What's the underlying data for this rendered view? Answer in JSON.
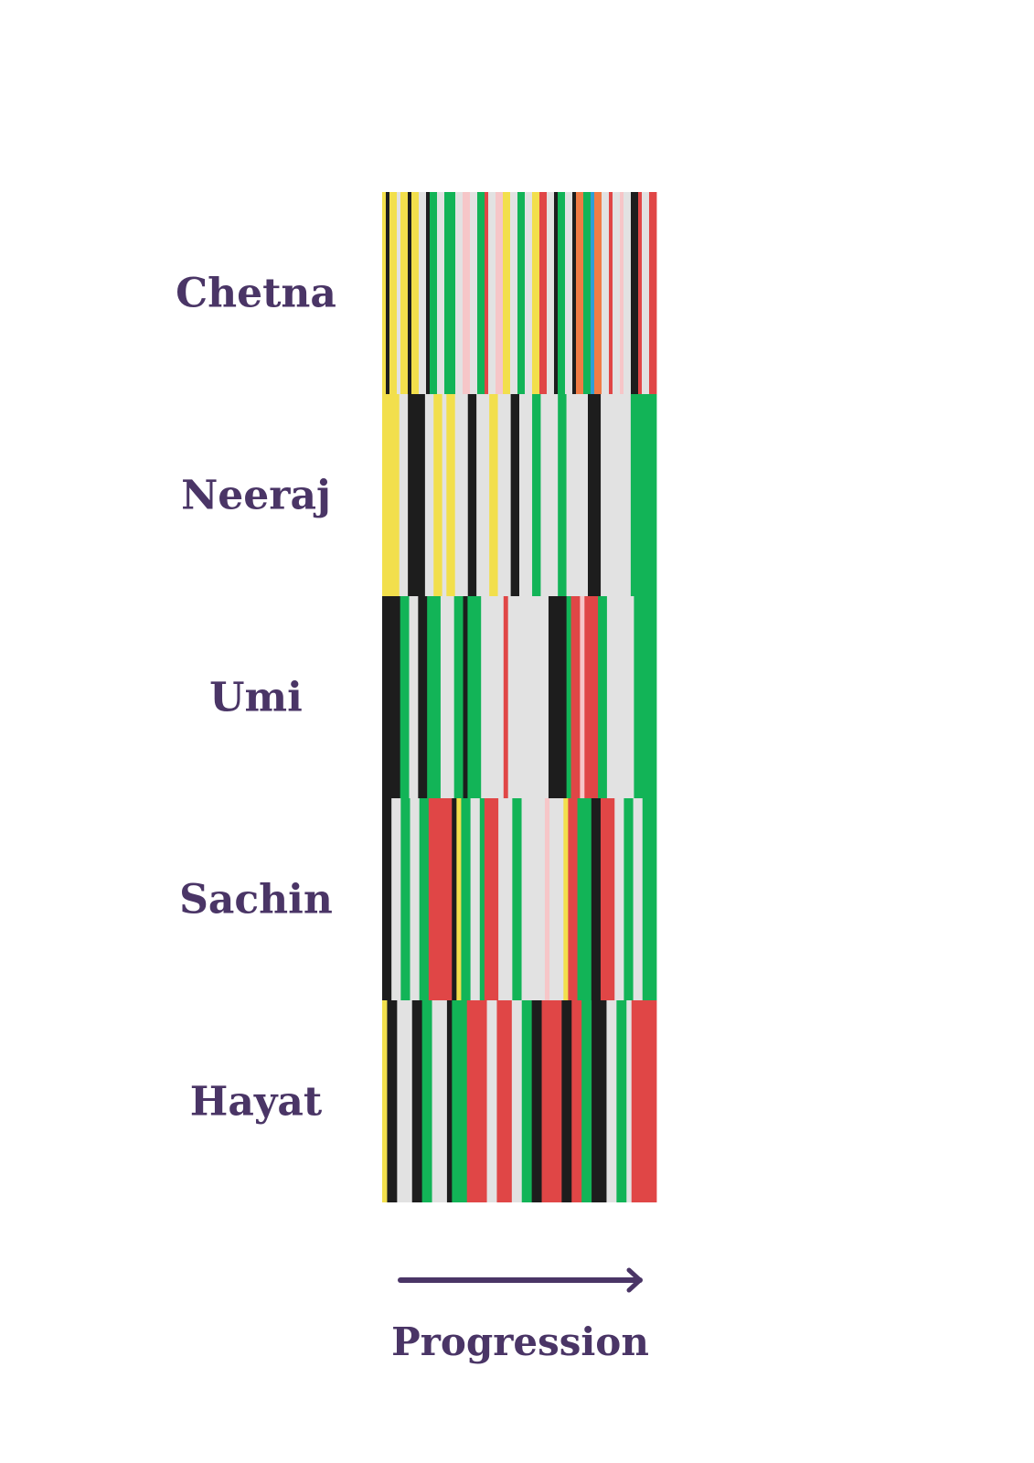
{
  "chart_data": {
    "type": "heatmap",
    "xlabel": "Progression",
    "palette": {
      "Y": "#f2df4c",
      "K": "#1d1d1d",
      "G": "#12b457",
      "R": "#e04646",
      "W": "#e2e2e2",
      "P": "#f6c6c8",
      "O": "#f07c45",
      "B": "#2e9ed6"
    },
    "label_color": "#4a3566",
    "arrow_color": "#4a3566",
    "rows": [
      {
        "name": "Chetna",
        "segments": [
          "Y",
          "K",
          "Y",
          "W",
          "Y",
          "K",
          "Y",
          "W",
          "K",
          "G",
          "W",
          "G",
          "W",
          "P",
          "W",
          "G",
          "R",
          "W",
          "P",
          "Y",
          "W",
          "G",
          "W",
          "Y",
          "R",
          "W",
          "K",
          "G",
          "W",
          "K",
          "O",
          "G",
          "B",
          "O",
          "W",
          "R",
          "W",
          "P",
          "W",
          "K",
          "R",
          "W",
          "R"
        ],
        "weights": [
          1,
          1,
          2,
          1,
          2,
          1,
          2,
          2,
          1,
          2,
          2,
          3,
          2,
          2,
          2,
          2,
          1,
          2,
          2,
          2,
          2,
          2,
          2,
          2,
          2,
          2,
          1,
          2,
          2,
          1,
          2,
          2,
          1,
          2,
          2,
          1,
          2,
          1,
          2,
          2,
          1,
          2,
          2
        ]
      },
      {
        "name": "Neeraj",
        "segments": [
          "Y",
          "W",
          "K",
          "W",
          "Y",
          "W",
          "Y",
          "W",
          "K",
          "W",
          "Y",
          "W",
          "K",
          "W",
          "G",
          "W",
          "G",
          "W",
          "K",
          "W",
          "G"
        ],
        "weights": [
          4,
          2,
          4,
          2,
          2,
          1,
          2,
          3,
          2,
          3,
          2,
          3,
          2,
          3,
          2,
          4,
          2,
          5,
          3,
          7,
          6
        ]
      },
      {
        "name": "Umi",
        "segments": [
          "K",
          "G",
          "W",
          "K",
          "G",
          "W",
          "G",
          "K",
          "G",
          "W",
          "R",
          "W",
          "K",
          "G",
          "R",
          "P",
          "R",
          "G",
          "W",
          "G"
        ],
        "weights": [
          4,
          2,
          2,
          2,
          3,
          3,
          2,
          1,
          3,
          5,
          1,
          9,
          4,
          1,
          2,
          1,
          3,
          2,
          6,
          5
        ]
      },
      {
        "name": "Sachin",
        "segments": [
          "K",
          "W",
          "G",
          "W",
          "G",
          "R",
          "K",
          "Y",
          "G",
          "W",
          "G",
          "R",
          "W",
          "G",
          "W",
          "P",
          "W",
          "Y",
          "R",
          "G",
          "K",
          "R",
          "W",
          "G",
          "W",
          "G"
        ],
        "weights": [
          2,
          2,
          2,
          2,
          2,
          5,
          1,
          1,
          2,
          2,
          1,
          3,
          3,
          2,
          5,
          1,
          3,
          1,
          2,
          3,
          2,
          3,
          2,
          2,
          2,
          3
        ]
      },
      {
        "name": "Hayat",
        "segments": [
          "Y",
          "K",
          "W",
          "K",
          "G",
          "W",
          "K",
          "G",
          "R",
          "W",
          "R",
          "W",
          "G",
          "K",
          "R",
          "K",
          "R",
          "G",
          "K",
          "W",
          "G",
          "W",
          "R"
        ],
        "weights": [
          1,
          2,
          3,
          2,
          2,
          3,
          1,
          3,
          4,
          2,
          3,
          2,
          2,
          2,
          4,
          2,
          2,
          2,
          3,
          2,
          2,
          1,
          5
        ]
      }
    ]
  }
}
